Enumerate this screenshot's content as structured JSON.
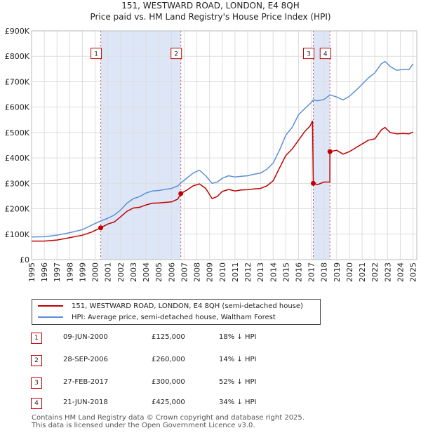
{
  "chart_data": {
    "type": "line",
    "title": "151, WESTWARD ROAD, LONDON, E4 8QH",
    "subtitle": "Price paid vs. HM Land Registry's House Price Index (HPI)",
    "xlabel": "",
    "ylabel": "",
    "xlim": [
      1995,
      2025.3
    ],
    "ylim": [
      0,
      900000
    ],
    "x_ticks": [
      1995,
      1996,
      1997,
      1998,
      1999,
      2000,
      2001,
      2002,
      2003,
      2004,
      2005,
      2006,
      2007,
      2008,
      2009,
      2010,
      2011,
      2012,
      2013,
      2014,
      2015,
      2016,
      2017,
      2018,
      2019,
      2020,
      2021,
      2022,
      2023,
      2024,
      2025
    ],
    "y_ticks": [
      {
        "value": 0,
        "label": "£0"
      },
      {
        "value": 100000,
        "label": "£100K"
      },
      {
        "value": 200000,
        "label": "£200K"
      },
      {
        "value": 300000,
        "label": "£300K"
      },
      {
        "value": 400000,
        "label": "£400K"
      },
      {
        "value": 500000,
        "label": "£500K"
      },
      {
        "value": 600000,
        "label": "£600K"
      },
      {
        "value": 700000,
        "label": "£700K"
      },
      {
        "value": 800000,
        "label": "£800K"
      },
      {
        "value": 900000,
        "label": "£900K"
      }
    ],
    "grid": true,
    "shaded_regions": [
      [
        2000.44,
        2006.74
      ],
      [
        2017.16,
        2018.47
      ]
    ],
    "series": [
      {
        "name": "151, WESTWARD ROAD, LONDON, E4 8QH (semi-detached house)",
        "color": "#c00000",
        "points": [
          [
            1995.0,
            73000
          ],
          [
            1996.0,
            73000
          ],
          [
            1997.0,
            77000
          ],
          [
            1998.0,
            86000
          ],
          [
            1999.0,
            96000
          ],
          [
            1999.7,
            108000
          ],
          [
            2000.44,
            125000
          ],
          [
            2001.0,
            140000
          ],
          [
            2001.5,
            148000
          ],
          [
            2002.0,
            168000
          ],
          [
            2002.5,
            190000
          ],
          [
            2003.0,
            203000
          ],
          [
            2003.5,
            206000
          ],
          [
            2004.0,
            215000
          ],
          [
            2004.5,
            222000
          ],
          [
            2005.0,
            223000
          ],
          [
            2005.5,
            225000
          ],
          [
            2006.0,
            227000
          ],
          [
            2006.5,
            238000
          ],
          [
            2006.74,
            260000
          ],
          [
            2007.2,
            273000
          ],
          [
            2007.7,
            290000
          ],
          [
            2008.2,
            298000
          ],
          [
            2008.7,
            280000
          ],
          [
            2009.2,
            240000
          ],
          [
            2009.6,
            248000
          ],
          [
            2010.0,
            268000
          ],
          [
            2010.5,
            276000
          ],
          [
            2011.0,
            270000
          ],
          [
            2011.5,
            274000
          ],
          [
            2012.0,
            275000
          ],
          [
            2012.5,
            278000
          ],
          [
            2013.0,
            280000
          ],
          [
            2013.5,
            290000
          ],
          [
            2014.0,
            310000
          ],
          [
            2014.5,
            360000
          ],
          [
            2015.0,
            410000
          ],
          [
            2015.5,
            435000
          ],
          [
            2016.0,
            470000
          ],
          [
            2016.5,
            505000
          ],
          [
            2016.9,
            525000
          ],
          [
            2017.1,
            545000
          ],
          [
            2017.16,
            300000
          ],
          [
            2017.5,
            295000
          ],
          [
            2018.0,
            305000
          ],
          [
            2018.46,
            305000
          ],
          [
            2018.47,
            425000
          ],
          [
            2019.0,
            430000
          ],
          [
            2019.5,
            415000
          ],
          [
            2020.0,
            425000
          ],
          [
            2020.5,
            440000
          ],
          [
            2021.0,
            455000
          ],
          [
            2021.5,
            470000
          ],
          [
            2022.0,
            475000
          ],
          [
            2022.5,
            510000
          ],
          [
            2022.8,
            520000
          ],
          [
            2023.2,
            500000
          ],
          [
            2023.7,
            495000
          ],
          [
            2024.2,
            496000
          ],
          [
            2024.7,
            495000
          ],
          [
            2025.0,
            502000
          ]
        ]
      },
      {
        "name": "HPI: Average price, semi-detached house, Waltham Forest",
        "color": "#5b8fd6",
        "points": [
          [
            1995.0,
            89000
          ],
          [
            1996.0,
            90000
          ],
          [
            1997.0,
            96000
          ],
          [
            1998.0,
            106000
          ],
          [
            1999.0,
            118000
          ],
          [
            1999.7,
            135000
          ],
          [
            2000.44,
            152000
          ],
          [
            2001.0,
            163000
          ],
          [
            2001.5,
            175000
          ],
          [
            2002.0,
            195000
          ],
          [
            2002.5,
            222000
          ],
          [
            2003.0,
            240000
          ],
          [
            2003.5,
            248000
          ],
          [
            2004.0,
            262000
          ],
          [
            2004.5,
            270000
          ],
          [
            2005.0,
            272000
          ],
          [
            2005.5,
            276000
          ],
          [
            2006.0,
            280000
          ],
          [
            2006.5,
            290000
          ],
          [
            2006.74,
            302000
          ],
          [
            2007.2,
            320000
          ],
          [
            2007.7,
            340000
          ],
          [
            2008.2,
            352000
          ],
          [
            2008.7,
            330000
          ],
          [
            2009.2,
            300000
          ],
          [
            2009.6,
            305000
          ],
          [
            2010.0,
            320000
          ],
          [
            2010.5,
            330000
          ],
          [
            2011.0,
            325000
          ],
          [
            2011.5,
            328000
          ],
          [
            2012.0,
            330000
          ],
          [
            2012.5,
            336000
          ],
          [
            2013.0,
            340000
          ],
          [
            2013.5,
            355000
          ],
          [
            2014.0,
            380000
          ],
          [
            2014.5,
            430000
          ],
          [
            2015.0,
            490000
          ],
          [
            2015.5,
            520000
          ],
          [
            2016.0,
            570000
          ],
          [
            2016.5,
            595000
          ],
          [
            2017.0,
            618000
          ],
          [
            2017.16,
            628000
          ],
          [
            2017.5,
            625000
          ],
          [
            2018.0,
            630000
          ],
          [
            2018.47,
            648000
          ],
          [
            2019.0,
            640000
          ],
          [
            2019.5,
            628000
          ],
          [
            2020.0,
            643000
          ],
          [
            2020.5,
            665000
          ],
          [
            2021.0,
            690000
          ],
          [
            2021.5,
            715000
          ],
          [
            2022.0,
            735000
          ],
          [
            2022.5,
            770000
          ],
          [
            2022.8,
            780000
          ],
          [
            2023.2,
            760000
          ],
          [
            2023.7,
            745000
          ],
          [
            2024.2,
            748000
          ],
          [
            2024.7,
            748000
          ],
          [
            2025.0,
            770000
          ]
        ]
      }
    ],
    "markers": [
      {
        "label": "1",
        "x": 2000.44,
        "y": 125000
      },
      {
        "label": "2",
        "x": 2006.74,
        "y": 260000
      },
      {
        "label": "3",
        "x": 2017.16,
        "y": 300000
      },
      {
        "label": "4",
        "x": 2018.47,
        "y": 425000
      }
    ],
    "marker_box_value": 810000
  },
  "legend": {
    "property_label": "151, WESTWARD ROAD, LONDON, E4 8QH (semi-detached house)",
    "hpi_label": "HPI: Average price, semi-detached house, Waltham Forest"
  },
  "transactions": [
    {
      "num": "1",
      "date": "09-JUN-2000",
      "price": "£125,000",
      "hpi": "18% ↓ HPI"
    },
    {
      "num": "2",
      "date": "28-SEP-2006",
      "price": "£260,000",
      "hpi": "14% ↓ HPI"
    },
    {
      "num": "3",
      "date": "27-FEB-2017",
      "price": "£300,000",
      "hpi": "52% ↓ HPI"
    },
    {
      "num": "4",
      "date": "21-JUN-2018",
      "price": "£425,000",
      "hpi": "34% ↓ HPI"
    }
  ],
  "footer": {
    "line1": "Contains HM Land Registry data © Crown copyright and database right 2025.",
    "line2": "This data is licensed under the Open Government Licence v3.0."
  },
  "colors": {
    "property": "#c00000",
    "hpi": "#5b8fd6",
    "shade": "#dde6f7",
    "grid": "#dddddd"
  }
}
